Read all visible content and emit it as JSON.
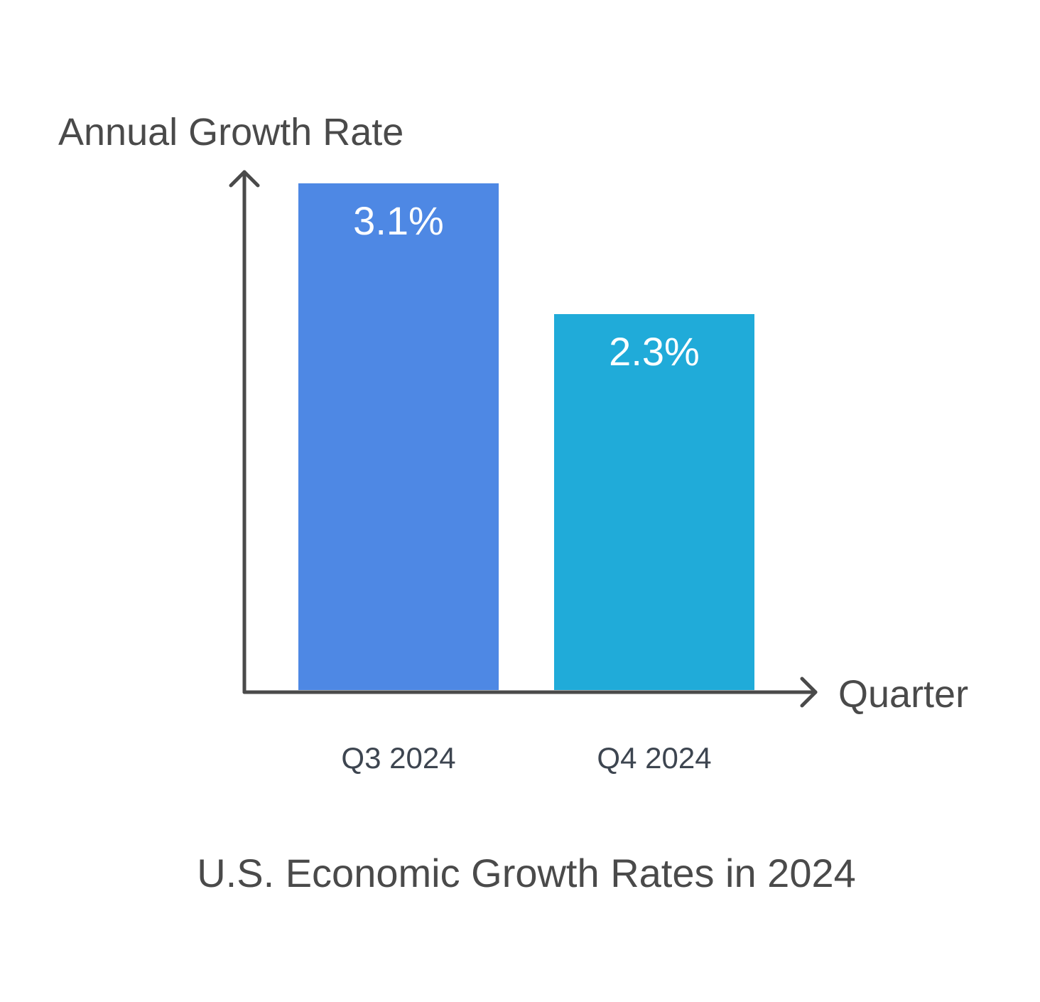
{
  "chart_data": {
    "type": "bar",
    "title": "U.S. Economic Growth Rates in 2024",
    "xlabel": "Quarter",
    "ylabel": "Annual Growth Rate",
    "categories": [
      "Q3 2024",
      "Q4 2024"
    ],
    "values": [
      3.1,
      2.3
    ],
    "value_labels": [
      "3.1%",
      "2.3%"
    ],
    "colors": [
      "#4e88e4",
      "#20abd9"
    ],
    "ylim": [
      0,
      3.1
    ],
    "grid": false,
    "legend": "none"
  }
}
